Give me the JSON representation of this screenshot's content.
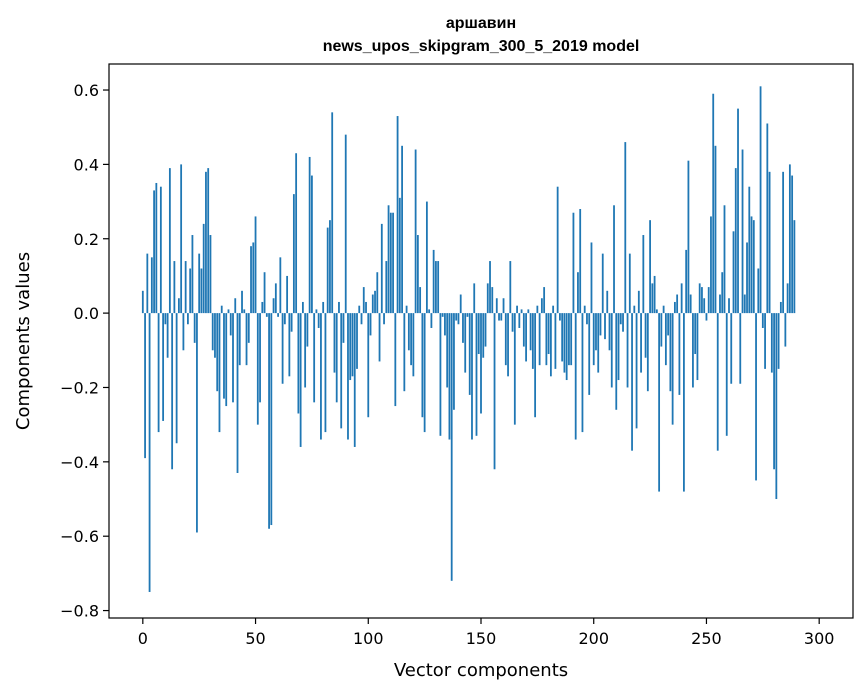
{
  "chart_data": {
    "type": "bar",
    "title": "аршавин",
    "subtitle": "news_upos_skipgram_300_5_2019 model",
    "xlabel": "Vector components",
    "ylabel": "Components values",
    "xlim": [
      -15,
      315
    ],
    "ylim": [
      -0.82,
      0.67
    ],
    "xticks": [
      0,
      50,
      100,
      150,
      200,
      250,
      300
    ],
    "yticks": [
      -0.8,
      -0.6,
      -0.4,
      -0.2,
      0.0,
      0.2,
      0.4,
      0.6
    ],
    "xtick_labels": [
      "0",
      "50",
      "100",
      "150",
      "200",
      "250",
      "300"
    ],
    "ytick_labels": [
      "−0.8",
      "−0.6",
      "−0.4",
      "−0.2",
      "0.0",
      "0.2",
      "0.4",
      "0.6"
    ],
    "grid": false,
    "color": "#1f77b4",
    "values": [
      0.06,
      -0.39,
      0.16,
      -0.75,
      0.15,
      0.33,
      0.35,
      -0.32,
      0.34,
      -0.29,
      -0.03,
      -0.12,
      0.39,
      -0.42,
      0.14,
      -0.35,
      0.04,
      0.4,
      -0.1,
      0.14,
      -0.03,
      0.12,
      0.21,
      -0.08,
      -0.59,
      0.16,
      0.12,
      0.24,
      0.38,
      0.39,
      0.21,
      -0.1,
      -0.12,
      -0.21,
      -0.32,
      0.02,
      -0.23,
      -0.25,
      0.01,
      -0.06,
      -0.24,
      0.04,
      -0.43,
      -0.14,
      0.06,
      0.01,
      -0.14,
      -0.08,
      0.18,
      0.19,
      0.26,
      -0.3,
      -0.24,
      0.03,
      0.11,
      -0.01,
      -0.58,
      -0.57,
      0.04,
      0.08,
      -0.01,
      0.15,
      -0.19,
      -0.03,
      0.1,
      -0.17,
      -0.05,
      0.32,
      0.43,
      -0.27,
      -0.36,
      0.03,
      -0.2,
      -0.09,
      0.42,
      0.37,
      -0.24,
      0.01,
      -0.04,
      -0.34,
      0.03,
      -0.32,
      0.23,
      0.25,
      0.54,
      -0.16,
      -0.24,
      0.03,
      -0.31,
      -0.08,
      0.48,
      -0.34,
      -0.18,
      -0.17,
      -0.36,
      -0.15,
      0.02,
      -0.03,
      0.07,
      0.03,
      -0.28,
      -0.06,
      0.05,
      0.06,
      0.11,
      -0.13,
      0.24,
      -0.03,
      0.14,
      0.29,
      0.27,
      0.27,
      -0.25,
      0.53,
      0.31,
      0.45,
      -0.21,
      0.02,
      -0.1,
      -0.14,
      -0.17,
      0.44,
      0.21,
      0.07,
      -0.28,
      -0.32,
      0.3,
      0.01,
      -0.04,
      0.17,
      0.14,
      0.14,
      -0.33,
      -0.01,
      -0.06,
      -0.2,
      -0.34,
      -0.72,
      -0.26,
      -0.02,
      -0.03,
      0.05,
      -0.08,
      -0.16,
      -0.01,
      -0.22,
      -0.34,
      0.08,
      -0.33,
      -0.11,
      -0.27,
      -0.12,
      -0.09,
      0.08,
      0.14,
      0.07,
      -0.42,
      0.04,
      -0.02,
      -0.02,
      0.04,
      -0.14,
      -0.17,
      0.14,
      -0.05,
      -0.3,
      0.02,
      -0.04,
      0.01,
      -0.09,
      -0.13,
      0.01,
      -0.1,
      -0.15,
      -0.28,
      0.02,
      -0.14,
      0.04,
      0.07,
      -0.14,
      -0.11,
      -0.17,
      0.02,
      -0.15,
      0.34,
      -0.02,
      -0.13,
      -0.16,
      -0.18,
      -0.14,
      -0.14,
      0.27,
      -0.34,
      0.11,
      0.28,
      -0.32,
      0.02,
      -0.03,
      -0.22,
      0.19,
      -0.14,
      -0.1,
      -0.16,
      -0.06,
      0.16,
      -0.07,
      0.06,
      -0.1,
      -0.2,
      0.29,
      -0.26,
      -0.18,
      -0.03,
      -0.05,
      0.46,
      -0.2,
      0.16,
      -0.37,
      0.02,
      -0.31,
      0.06,
      -0.16,
      0.21,
      -0.12,
      -0.21,
      0.25,
      0.08,
      0.1,
      0.01,
      -0.48,
      -0.09,
      0.02,
      -0.14,
      -0.06,
      -0.21,
      -0.3,
      0.03,
      0.05,
      -0.22,
      0.08,
      -0.48,
      0.17,
      0.41,
      0.05,
      -0.2,
      -0.11,
      -0.18,
      0.08,
      0.07,
      0.04,
      -0.02,
      0.07,
      0.26,
      0.59,
      0.45,
      -0.37,
      0.05,
      0.11,
      0.29,
      -0.33,
      0.04,
      -0.19,
      0.22,
      0.39,
      0.55,
      -0.19,
      0.44,
      0.05,
      0.19,
      0.34,
      0.26,
      0.25,
      -0.45,
      0.12,
      0.61,
      -0.04,
      -0.15,
      0.51,
      0.38,
      -0.16,
      -0.42,
      -0.5,
      -0.15,
      0.03,
      0.38,
      -0.09,
      0.08,
      0.4,
      0.37,
      0.25
    ]
  }
}
